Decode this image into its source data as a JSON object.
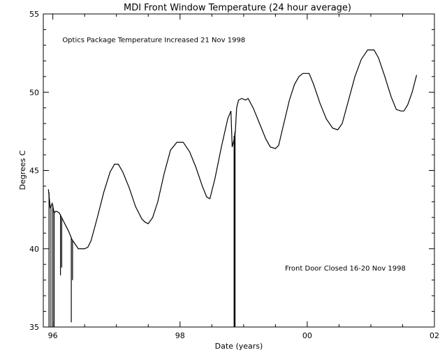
{
  "chart_data": {
    "type": "line",
    "title": "MDI Front Window Temperature (24 hour average)",
    "xlabel": "Date (years)",
    "ylabel": "Degrees C",
    "xlim": [
      1995.85,
      2002.0
    ],
    "ylim": [
      35,
      55
    ],
    "x_ticks": [
      {
        "value": 1996,
        "label": "96"
      },
      {
        "value": 1998,
        "label": "98"
      },
      {
        "value": 2000,
        "label": "00"
      },
      {
        "value": 2002,
        "label": "02"
      }
    ],
    "y_ticks": [
      {
        "value": 35,
        "label": "35"
      },
      {
        "value": 40,
        "label": "40"
      },
      {
        "value": 45,
        "label": "45"
      },
      {
        "value": 50,
        "label": "50"
      },
      {
        "value": 55,
        "label": "55"
      }
    ],
    "grid": false,
    "annotations": [
      {
        "text": "Optics Package Temperature Increased 21 Nov 1998",
        "x": 1996.15,
        "y": 53.2
      },
      {
        "text": "Front Door Closed 16-20 Nov 1998",
        "x": 1999.65,
        "y": 38.6
      }
    ],
    "series": [
      {
        "color": "#000000",
        "points": [
          [
            1995.93,
            43.8
          ],
          [
            1995.96,
            42.6
          ],
          [
            1995.99,
            42.9
          ],
          [
            1996.02,
            42.3
          ],
          [
            1996.05,
            42.4
          ],
          [
            1996.1,
            42.3
          ],
          [
            1996.15,
            41.9
          ],
          [
            1996.2,
            41.5
          ],
          [
            1996.25,
            41.1
          ],
          [
            1996.3,
            40.6
          ],
          [
            1996.35,
            40.3
          ],
          [
            1996.4,
            40.0
          ],
          [
            1996.45,
            40.0
          ],
          [
            1996.5,
            40.0
          ],
          [
            1996.55,
            40.1
          ],
          [
            1996.6,
            40.5
          ],
          [
            1996.7,
            42.0
          ],
          [
            1996.8,
            43.6
          ],
          [
            1996.9,
            44.9
          ],
          [
            1996.97,
            45.4
          ],
          [
            1997.03,
            45.4
          ],
          [
            1997.1,
            44.9
          ],
          [
            1997.2,
            43.9
          ],
          [
            1997.3,
            42.7
          ],
          [
            1997.4,
            41.9
          ],
          [
            1997.45,
            41.7
          ],
          [
            1997.5,
            41.6
          ],
          [
            1997.57,
            42.0
          ],
          [
            1997.65,
            43.0
          ],
          [
            1997.75,
            44.8
          ],
          [
            1997.85,
            46.3
          ],
          [
            1997.95,
            46.8
          ],
          [
            1998.05,
            46.8
          ],
          [
            1998.15,
            46.2
          ],
          [
            1998.25,
            45.2
          ],
          [
            1998.35,
            44.0
          ],
          [
            1998.42,
            43.3
          ],
          [
            1998.47,
            43.2
          ],
          [
            1998.55,
            44.5
          ],
          [
            1998.65,
            46.5
          ],
          [
            1998.75,
            48.3
          ],
          [
            1998.8,
            48.8
          ],
          [
            1998.82,
            46.5
          ],
          [
            1998.85,
            47.0
          ],
          [
            1998.87,
            47.5
          ],
          [
            1998.89,
            49.0
          ],
          [
            1998.92,
            49.5
          ],
          [
            1998.97,
            49.6
          ],
          [
            1999.03,
            49.5
          ],
          [
            1999.07,
            49.6
          ],
          [
            1999.15,
            49.0
          ],
          [
            1999.25,
            48.0
          ],
          [
            1999.35,
            47.0
          ],
          [
            1999.42,
            46.5
          ],
          [
            1999.5,
            46.4
          ],
          [
            1999.55,
            46.6
          ],
          [
            1999.62,
            47.8
          ],
          [
            1999.72,
            49.5
          ],
          [
            1999.8,
            50.5
          ],
          [
            1999.87,
            51.0
          ],
          [
            1999.93,
            51.2
          ],
          [
            2000.03,
            51.2
          ],
          [
            2000.1,
            50.5
          ],
          [
            2000.2,
            49.3
          ],
          [
            2000.3,
            48.3
          ],
          [
            2000.4,
            47.7
          ],
          [
            2000.48,
            47.6
          ],
          [
            2000.55,
            48.0
          ],
          [
            2000.65,
            49.5
          ],
          [
            2000.75,
            51.0
          ],
          [
            2000.85,
            52.1
          ],
          [
            2000.95,
            52.7
          ],
          [
            2001.05,
            52.7
          ],
          [
            2001.12,
            52.2
          ],
          [
            2001.22,
            51.0
          ],
          [
            2001.32,
            49.7
          ],
          [
            2001.4,
            48.9
          ],
          [
            2001.47,
            48.8
          ],
          [
            2001.52,
            48.8
          ],
          [
            2001.58,
            49.2
          ],
          [
            2001.65,
            50.0
          ],
          [
            2001.72,
            51.1
          ]
        ]
      }
    ],
    "dropouts": [
      {
        "x": 1995.94,
        "from": 43.6,
        "to": 35.0
      },
      {
        "x": 1995.97,
        "from": 42.7,
        "to": 35.0
      },
      {
        "x": 1996.0,
        "from": 42.8,
        "to": 35.0
      },
      {
        "x": 1996.02,
        "from": 42.4,
        "to": 35.0
      },
      {
        "x": 1996.12,
        "from": 42.2,
        "to": 38.3
      },
      {
        "x": 1996.14,
        "from": 42.0,
        "to": 38.8
      },
      {
        "x": 1996.29,
        "from": 40.7,
        "to": 35.3
      },
      {
        "x": 1996.31,
        "from": 40.5,
        "to": 38.0
      },
      {
        "x": 1998.85,
        "from": 47.2,
        "to": 35.0
      },
      {
        "x": 1998.86,
        "from": 47.4,
        "to": 35.0
      },
      {
        "x": 1998.865,
        "from": 47.5,
        "to": 35.0
      }
    ]
  }
}
